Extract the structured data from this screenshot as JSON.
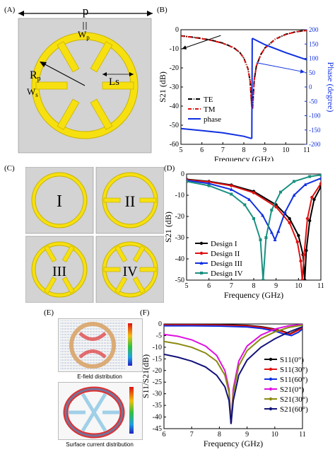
{
  "panels": {
    "A": {
      "label": "(A)",
      "p": "p",
      "wp": "W",
      "wp_sub": "p",
      "rp": "R",
      "rp_sub": "p",
      "ws": "W",
      "ws_sub": "s",
      "ls": "Ls"
    },
    "B": {
      "label": "(B)"
    },
    "C": {
      "label": "(C)",
      "designs": [
        "I",
        "II",
        "III",
        "IV"
      ]
    },
    "D": {
      "label": "(D)"
    },
    "E": {
      "label": "(E)",
      "cap1": "E-field distribution",
      "cap2": "Surface current distribution"
    },
    "F": {
      "label": "(F)"
    }
  },
  "colors": {
    "yellow": "#f7e010",
    "yellow_edge": "#c8b400",
    "gray_bg": "#d3d3d3"
  },
  "chart_data": [
    {
      "id": "B",
      "type": "line",
      "xlabel": "Frequency (GHz)",
      "ylabel": "S21 (dB)",
      "y2label": "Phase (degree)",
      "xlim": [
        5,
        11
      ],
      "ylim": [
        -60,
        0
      ],
      "y2lim": [
        -200,
        200
      ],
      "xticks": [
        5,
        6,
        7,
        8,
        9,
        10,
        11
      ],
      "yticks": [
        0,
        -10,
        -20,
        -30,
        -40,
        -50,
        -60
      ],
      "y2ticks": [
        200,
        150,
        100,
        50,
        0,
        -50,
        -100,
        -150,
        -200
      ],
      "legend": {
        "position": "center-right",
        "entries": [
          "TE",
          "TM",
          "phase"
        ]
      },
      "series": [
        {
          "name": "TE",
          "color": "#000000",
          "axis": "left",
          "x": [
            5,
            5.5,
            6,
            6.5,
            7,
            7.5,
            7.8,
            8.0,
            8.2,
            8.3,
            8.38,
            8.42,
            8.5,
            8.6,
            8.8,
            9.0,
            9.5,
            10.0,
            10.5,
            11
          ],
          "y": [
            -3.2,
            -3.8,
            -4.6,
            -5.6,
            -7.0,
            -9.3,
            -11.8,
            -14.8,
            -20.5,
            -27,
            -40,
            -40,
            -26,
            -19,
            -13.2,
            -9.6,
            -4.9,
            -2.4,
            -1.0,
            -0.3
          ]
        },
        {
          "name": "TM",
          "color": "#e01010",
          "axis": "left",
          "x": [
            5,
            5.5,
            6,
            6.5,
            7,
            7.5,
            7.8,
            8.0,
            8.2,
            8.3,
            8.38,
            8.42,
            8.5,
            8.6,
            8.8,
            9.0,
            9.5,
            10.0,
            10.5,
            11
          ],
          "y": [
            -3.3,
            -3.9,
            -4.7,
            -5.7,
            -7.1,
            -9.4,
            -11.9,
            -14.9,
            -20.6,
            -27,
            -41,
            -41,
            -26,
            -19,
            -13.3,
            -9.7,
            -5.0,
            -2.5,
            -1.1,
            -0.4
          ]
        },
        {
          "name": "phase",
          "color": "#1030e0",
          "axis": "right",
          "x": [
            5,
            6,
            7,
            8,
            8.38,
            8.4,
            9,
            10,
            11
          ],
          "y": [
            -145,
            -152,
            -160,
            -172,
            -180,
            170,
            148,
            120,
            95
          ]
        }
      ],
      "annotations": [
        {
          "type": "arrow",
          "from": [
            6.9,
            -3
          ],
          "to": [
            5.05,
            -10
          ]
        },
        {
          "type": "arrow",
          "from": [
            8.6,
            85
          ],
          "to": [
            10.9,
            52
          ]
        }
      ]
    },
    {
      "id": "D",
      "type": "line",
      "xlabel": "Frequency (GHz)",
      "ylabel": "S21 (dB)",
      "xlim": [
        5,
        11
      ],
      "ylim": [
        -50,
        0
      ],
      "xticks": [
        5,
        6,
        7,
        8,
        9,
        10,
        11
      ],
      "yticks": [
        0,
        -10,
        -20,
        -30,
        -40,
        -50
      ],
      "legend": {
        "position": "bottom-left",
        "entries": [
          "Design I",
          "Design II",
          "Design III",
          "Design IV"
        ]
      },
      "series": [
        {
          "name": "Design I",
          "color": "#000000",
          "marker": "circle",
          "x": [
            5,
            6,
            7,
            8,
            9,
            9.6,
            10.0,
            10.2,
            10.28,
            10.35,
            10.5,
            10.7,
            11
          ],
          "y": [
            -2.5,
            -3.5,
            -5.2,
            -8.2,
            -14.5,
            -21,
            -29,
            -38,
            -50,
            -36,
            -22,
            -12,
            -6
          ]
        },
        {
          "name": "Design II",
          "color": "#e01010",
          "marker": "circle",
          "x": [
            5,
            6,
            7,
            8,
            9,
            9.6,
            9.95,
            10.1,
            10.17,
            10.25,
            10.4,
            10.6,
            11
          ],
          "y": [
            -2.7,
            -3.7,
            -5.5,
            -8.8,
            -15.5,
            -23,
            -32,
            -41,
            -50,
            -38,
            -21,
            -11,
            -4.5
          ]
        },
        {
          "name": "Design III",
          "color": "#1030e0",
          "marker": "triangle",
          "x": [
            5,
            6,
            7,
            7.8,
            8.4,
            8.8,
            8.95,
            9.1,
            9.4,
            9.8,
            10.3,
            11
          ],
          "y": [
            -3.0,
            -4.5,
            -7.3,
            -12,
            -19.5,
            -27.5,
            -31,
            -27,
            -18,
            -10,
            -5,
            -2
          ]
        },
        {
          "name": "Design IV",
          "color": "#1a9080",
          "marker": "square",
          "x": [
            5,
            6,
            7,
            7.6,
            8.0,
            8.3,
            8.42,
            8.55,
            8.8,
            9.2,
            9.8,
            10.5,
            11
          ],
          "y": [
            -3.5,
            -5.5,
            -9.5,
            -14.5,
            -21,
            -31,
            -50,
            -30,
            -17,
            -8.5,
            -3.5,
            -1.2,
            -0.4
          ]
        }
      ]
    },
    {
      "id": "F",
      "type": "line",
      "xlabel": "Frequency (GHz)",
      "ylabel": "S11/S21(dB)",
      "xlim": [
        6,
        11
      ],
      "ylim": [
        -45,
        0
      ],
      "xticks": [
        6,
        7,
        8,
        9,
        10,
        11
      ],
      "yticks": [
        0,
        -5,
        -10,
        -15,
        -20,
        -25,
        -30,
        -35,
        -40,
        -45
      ],
      "legend": {
        "position": "right",
        "entries": [
          "S11(0°)",
          "S11(30°)",
          "S11(60°)",
          "S21(0°)",
          "S21(30°)",
          "S21(60°)"
        ]
      },
      "series": [
        {
          "name": "S11(0°)",
          "color": "#000000",
          "x": [
            6,
            7,
            8,
            9,
            9.5,
            10,
            10.3,
            10.55,
            10.8,
            11
          ],
          "y": [
            -0.2,
            -0.2,
            -0.3,
            -0.6,
            -1.2,
            -2.2,
            -3.2,
            -4.2,
            -2.8,
            -1.5
          ]
        },
        {
          "name": "S11(30°)",
          "color": "#e01010",
          "x": [
            6,
            7,
            8,
            9,
            9.5,
            10,
            10.3,
            10.55,
            10.8,
            11
          ],
          "y": [
            -0.4,
            -0.4,
            -0.5,
            -0.8,
            -1.4,
            -2.4,
            -3.4,
            -4.4,
            -3.0,
            -1.7
          ]
        },
        {
          "name": "S11(60°)",
          "color": "#1030e0",
          "x": [
            6,
            7,
            8,
            9,
            9.5,
            10,
            10.3,
            10.6,
            10.85,
            11
          ],
          "y": [
            -0.8,
            -0.8,
            -0.9,
            -1.3,
            -1.9,
            -3.0,
            -4.2,
            -5.0,
            -3.6,
            -2.2
          ]
        },
        {
          "name": "S21(0°)",
          "color": "#e010e0",
          "x": [
            6,
            6.5,
            7,
            7.5,
            7.9,
            8.2,
            8.35,
            8.42,
            8.5,
            8.7,
            9,
            9.5,
            10,
            10.5,
            11
          ],
          "y": [
            -4.5,
            -5.3,
            -6.8,
            -9.5,
            -13.5,
            -20,
            -28,
            -43,
            -28,
            -16,
            -9.5,
            -4.8,
            -2.2,
            -0.8,
            -0.2
          ]
        },
        {
          "name": "S21(30°)",
          "color": "#8a8a10",
          "x": [
            6,
            6.5,
            7,
            7.5,
            7.9,
            8.2,
            8.35,
            8.42,
            8.5,
            8.7,
            9,
            9.5,
            10,
            10.5,
            11
          ],
          "y": [
            -7.5,
            -8.5,
            -10,
            -12.5,
            -16,
            -22,
            -29.5,
            -43,
            -30,
            -18,
            -11.5,
            -6.3,
            -3.4,
            -1.5,
            -0.5
          ]
        },
        {
          "name": "S21(60°)",
          "color": "#12127a",
          "x": [
            6,
            6.5,
            7,
            7.5,
            7.9,
            8.2,
            8.35,
            8.42,
            8.5,
            8.7,
            9,
            9.5,
            10,
            10.5,
            11
          ],
          "y": [
            -13,
            -14.3,
            -16,
            -18.5,
            -22,
            -27,
            -33,
            -43,
            -33,
            -22,
            -15.5,
            -10,
            -6.4,
            -3.5,
            -1.2
          ]
        }
      ]
    }
  ]
}
